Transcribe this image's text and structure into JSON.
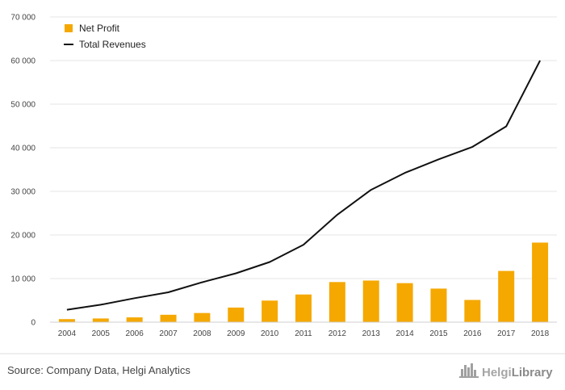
{
  "chart_data": {
    "type": "bar",
    "categories": [
      "2004",
      "2005",
      "2006",
      "2007",
      "2008",
      "2009",
      "2010",
      "2011",
      "2012",
      "2013",
      "2014",
      "2015",
      "2016",
      "2017",
      "2018"
    ],
    "series": [
      {
        "name": "Net Profit",
        "type": "bar",
        "color": "#f5a800",
        "values": [
          700,
          850,
          1100,
          1700,
          2100,
          3350,
          4950,
          6350,
          9200,
          9550,
          8950,
          7700,
          5100,
          11750,
          18250
        ]
      },
      {
        "name": "Total Revenues",
        "type": "line",
        "color": "#111111",
        "values": [
          2850,
          4000,
          5500,
          6850,
          9150,
          11200,
          13800,
          17750,
          24650,
          30350,
          34250,
          37350,
          40200,
          44900,
          60000
        ]
      }
    ],
    "yticks": [
      "0",
      "10 000",
      "20 000",
      "30 000",
      "40 000",
      "50 000",
      "60 000",
      "70 000"
    ],
    "ylim": [
      0,
      70000
    ],
    "grid": true,
    "legend_position": "top-left"
  },
  "footer": {
    "source": "Source: Company Data, Helgi Analytics",
    "brand_light": "Helgi",
    "brand_dark": "Library",
    "brand_icon": "city-skyline-icon"
  }
}
